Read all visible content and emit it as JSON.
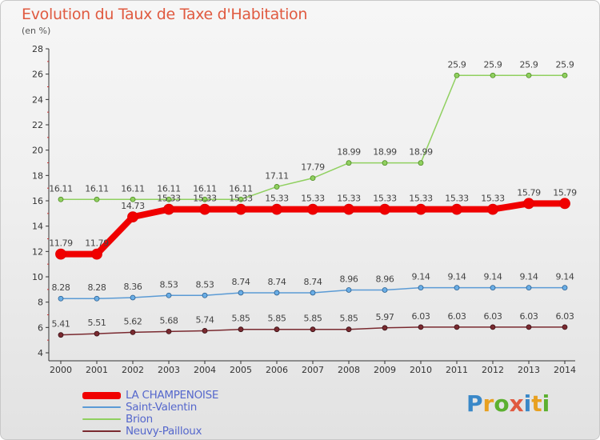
{
  "header": {
    "title": "Evolution du Taux de Taxe d'Habitation",
    "unit": "(en %)"
  },
  "logo": {
    "letters": [
      "P",
      "r",
      "o",
      "x",
      "i",
      "t",
      "i"
    ],
    "colors": [
      "#3a88c8",
      "#e8a020",
      "#5cb030",
      "#e05a40",
      "#3a88c8",
      "#e8a020",
      "#5cb030"
    ]
  },
  "chart_data": {
    "type": "line",
    "x": [
      2000,
      2001,
      2002,
      2003,
      2004,
      2005,
      2006,
      2007,
      2008,
      2009,
      2010,
      2011,
      2012,
      2013,
      2014
    ],
    "ylim": [
      4,
      28
    ],
    "yticks": [
      4,
      6,
      8,
      10,
      12,
      14,
      16,
      18,
      20,
      22,
      24,
      26,
      28
    ],
    "grid": false,
    "legend_position": "bottom-left",
    "series": [
      {
        "name": "LA CHAMPENOISE",
        "color": "#f00000",
        "values": [
          11.79,
          11.79,
          14.73,
          15.33,
          15.33,
          15.33,
          15.33,
          15.33,
          15.33,
          15.33,
          15.33,
          15.33,
          15.33,
          15.79,
          15.79
        ],
        "labels": [
          "11.79",
          "11.79",
          "14.73",
          "15.33",
          "15.33",
          "15.33",
          "15.33",
          "15.33",
          "15.33",
          "15.33",
          "15.33",
          "15.33",
          "15.33",
          "15.79",
          "15.79"
        ]
      },
      {
        "name": "Saint-Valentin",
        "color": "#5b9bd5",
        "values": [
          8.28,
          8.28,
          8.36,
          8.53,
          8.53,
          8.74,
          8.74,
          8.74,
          8.96,
          8.96,
          9.14,
          9.14,
          9.14,
          9.14,
          9.14
        ],
        "labels": [
          "8.28",
          "8.28",
          "8.36",
          "8.53",
          "8.53",
          "8.74",
          "8.74",
          "8.74",
          "8.96",
          "8.96",
          "9.14",
          "9.14",
          "9.14",
          "9.14",
          "9.14"
        ]
      },
      {
        "name": "Brion",
        "color": "#90d060",
        "values": [
          16.11,
          16.11,
          16.11,
          16.11,
          16.11,
          16.11,
          17.11,
          17.79,
          18.99,
          18.99,
          18.99,
          25.9,
          25.9,
          25.9,
          25.9
        ],
        "labels": [
          "16.11",
          "16.11",
          "16.11",
          "16.11",
          "16.11",
          "16.11",
          "17.11",
          "17.79",
          "18.99",
          "18.99",
          "18.99",
          "25.9",
          "25.9",
          "25.9",
          "25.9"
        ]
      },
      {
        "name": "Neuvy-Pailloux",
        "color": "#7a2a30",
        "values": [
          5.41,
          5.51,
          5.62,
          5.68,
          5.74,
          5.85,
          5.85,
          5.85,
          5.85,
          5.97,
          6.03,
          6.03,
          6.03,
          6.03,
          6.03
        ],
        "labels": [
          "5.41",
          "5.51",
          "5.62",
          "5.68",
          "5.74",
          "5.85",
          "5.85",
          "5.85",
          "5.85",
          "5.97",
          "6.03",
          "6.03",
          "6.03",
          "6.03",
          "6.03"
        ]
      }
    ]
  }
}
